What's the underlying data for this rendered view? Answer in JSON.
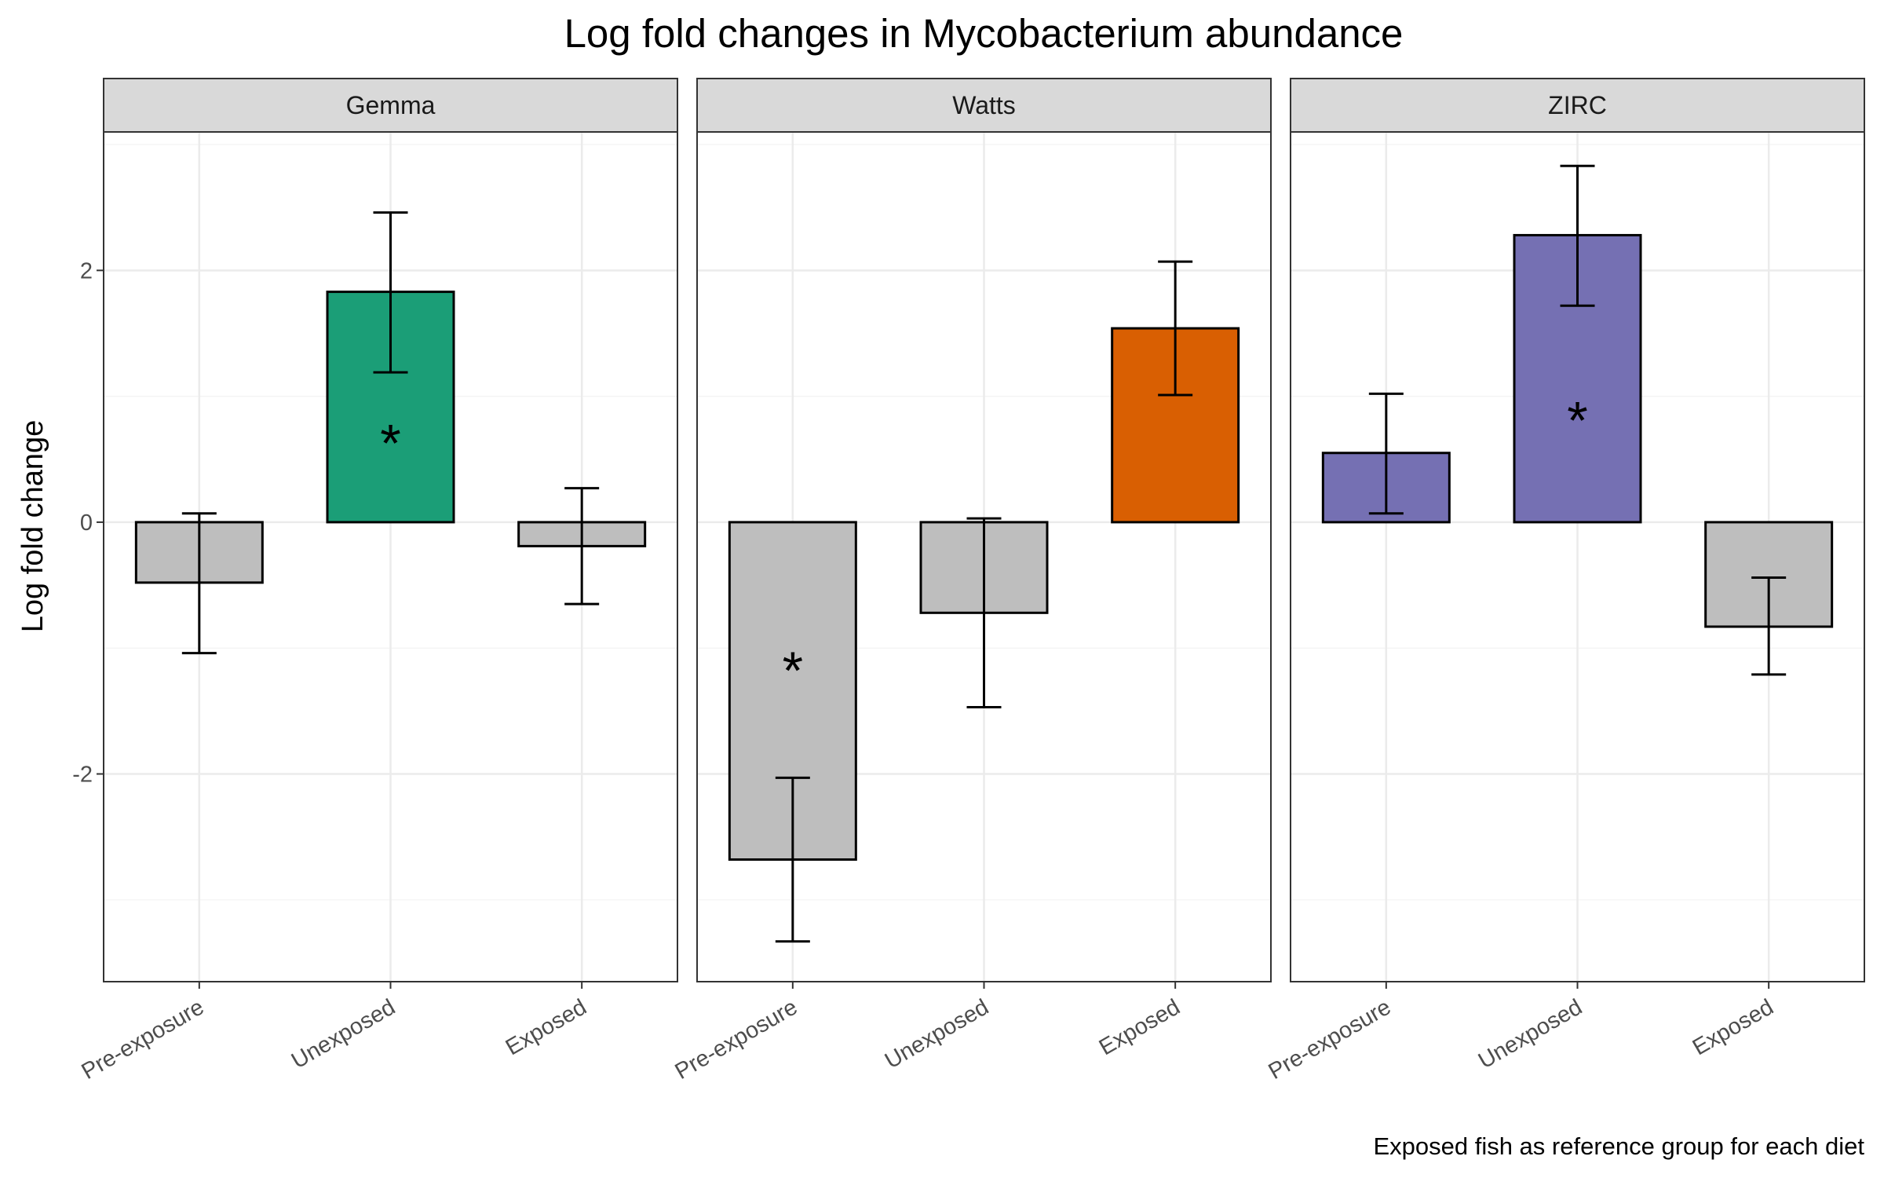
{
  "chart_data": {
    "type": "bar",
    "title": "Log fold changes in Mycobacterium abundance",
    "xlabel": "",
    "ylabel": "Log fold change",
    "caption": "Exposed fish as reference group for each diet",
    "categories": [
      "Pre-exposure",
      "Unexposed",
      "Exposed"
    ],
    "ylim": [
      -3.65,
      3.1
    ],
    "yticks": [
      -2,
      0,
      2
    ],
    "grid": true,
    "legend": "none",
    "significance_marker": "*",
    "neutral_color": "#BEBEBE",
    "panels": [
      {
        "name": "Gemma",
        "color": "#1B9E77",
        "values": [
          -0.48,
          1.83,
          -0.19
        ],
        "error_low": [
          -1.04,
          1.19,
          -0.65
        ],
        "error_high": [
          0.07,
          2.46,
          0.27
        ],
        "significant": [
          false,
          true,
          false
        ],
        "highlight": [
          false,
          true,
          false
        ]
      },
      {
        "name": "Watts",
        "color": "#D95F02",
        "values": [
          -2.68,
          -0.72,
          1.54
        ],
        "error_low": [
          -3.33,
          -1.47,
          1.01
        ],
        "error_high": [
          -2.03,
          0.03,
          2.07
        ],
        "significant": [
          true,
          false,
          false
        ],
        "highlight": [
          false,
          false,
          true
        ]
      },
      {
        "name": "ZIRC",
        "color": "#7570B3",
        "values": [
          0.55,
          2.28,
          -0.83
        ],
        "error_low": [
          0.07,
          1.72,
          -1.21
        ],
        "error_high": [
          1.02,
          2.83,
          -0.44
        ],
        "significant": [
          false,
          true,
          false
        ],
        "highlight": [
          true,
          true,
          false
        ]
      }
    ]
  }
}
